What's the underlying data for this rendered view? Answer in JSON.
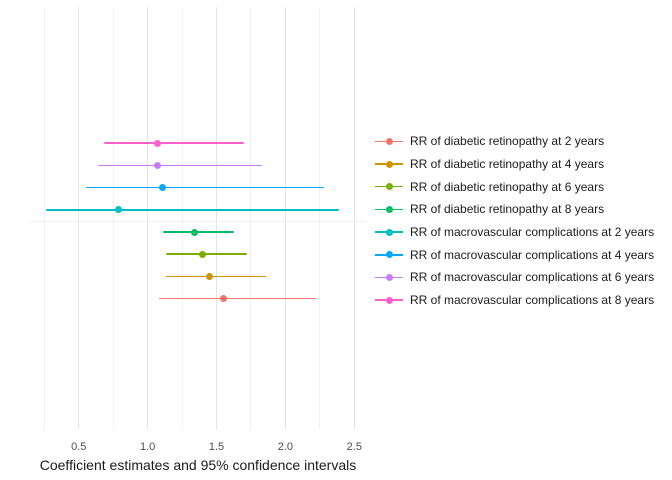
{
  "chart_data": {
    "type": "scatter",
    "subtype": "forest-plot-pointrange-horizontal-ci",
    "title": "",
    "xlabel": "Coefficient estimates and 95% confidence intervals",
    "ylabel": "",
    "xlim": [
      0.15,
      2.6
    ],
    "x_major_ticks": [
      0.5,
      1.0,
      1.5,
      2.0,
      2.5
    ],
    "x_tick_labels": [
      "0.5",
      "1.0",
      "1.5",
      "2.0",
      "2.5"
    ],
    "x_minor_ticks": [
      0.25,
      0.75,
      1.25,
      1.75,
      2.25
    ],
    "grid": "vertical major and minor gridlines in light gray on white background; one faint horizontal separator line between the macrovascular group (top 4 rows) and the retinopathy group (bottom 4 rows); no axis lines, no tick marks",
    "legend_position": "right, vertically centered, no title",
    "series": [
      {
        "name": "RR of diabetic retinopathy at 2 years",
        "color": "#F8766D",
        "estimate": 1.55,
        "ci_low": 1.08,
        "ci_high": 2.22
      },
      {
        "name": "RR of diabetic retinopathy at 4 years",
        "color": "#CD9600",
        "estimate": 1.45,
        "ci_low": 1.13,
        "ci_high": 1.86
      },
      {
        "name": "RR of diabetic retinopathy at 6 years",
        "color": "#7CAE00",
        "estimate": 1.4,
        "ci_low": 1.13,
        "ci_high": 1.72
      },
      {
        "name": "RR of diabetic retinopathy at 8 years",
        "color": "#00BE67",
        "estimate": 1.34,
        "ci_low": 1.11,
        "ci_high": 1.63
      },
      {
        "name": "RR of macrovascular complications at 2 years",
        "color": "#00BFC4",
        "estimate": 0.79,
        "ci_low": 0.26,
        "ci_high": 2.39
      },
      {
        "name": "RR of macrovascular complications at 4 years",
        "color": "#00A9FF",
        "estimate": 1.11,
        "ci_low": 0.55,
        "ci_high": 2.28
      },
      {
        "name": "RR of macrovascular complications at 6 years",
        "color": "#C77CFF",
        "estimate": 1.07,
        "ci_low": 0.64,
        "ci_high": 1.83
      },
      {
        "name": "RR of macrovascular complications at 8 years",
        "color": "#FF61CC",
        "estimate": 1.07,
        "ci_low": 0.68,
        "ci_high": 1.7
      }
    ],
    "plot_row_order_top_to_bottom": [
      "RR of macrovascular complications at 8 years",
      "RR of macrovascular complications at 6 years",
      "RR of macrovascular complications at 4 years",
      "RR of macrovascular complications at 2 years",
      "RR of diabetic retinopathy at 8 years",
      "RR of diabetic retinopathy at 6 years",
      "RR of diabetic retinopathy at 4 years",
      "RR of diabetic retinopathy at 2 years"
    ]
  }
}
